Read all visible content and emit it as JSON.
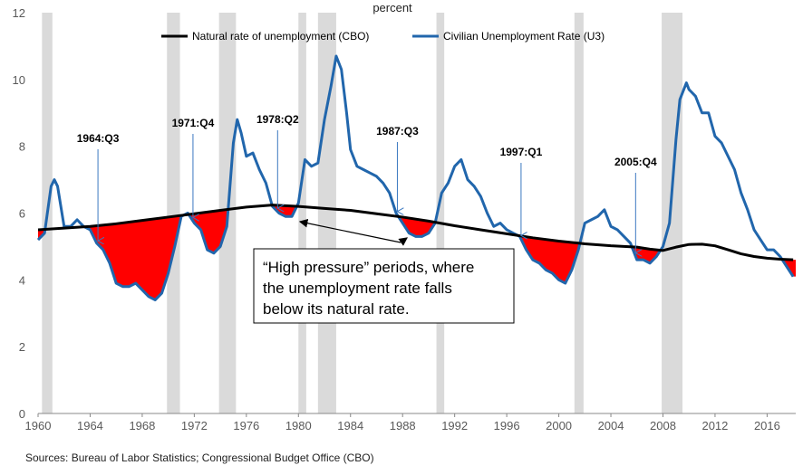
{
  "chart_data": {
    "type": "line",
    "title": "",
    "ylabel": "percent",
    "xlabel": "",
    "xlim": [
      1960,
      2018.2
    ],
    "ylim": [
      0,
      12
    ],
    "x_ticks": [
      1960,
      1964,
      1968,
      1972,
      1976,
      1980,
      1984,
      1988,
      1992,
      1996,
      2000,
      2004,
      2008,
      2012,
      2016
    ],
    "y_ticks": [
      0,
      2,
      4,
      6,
      8,
      10,
      12
    ],
    "grid": false,
    "legend_position": "top",
    "recessions": [
      [
        1960.3,
        1961.1
      ],
      [
        1969.9,
        1970.9
      ],
      [
        1973.9,
        1975.2
      ],
      [
        1980.0,
        1980.6
      ],
      [
        1981.5,
        1982.9
      ],
      [
        1990.6,
        1991.2
      ],
      [
        2001.2,
        2001.9
      ],
      [
        2007.9,
        2009.5
      ]
    ],
    "series": [
      {
        "name": "Natural rate of unemployment (CBO)",
        "color": "#000000",
        "x": [
          1960,
          1962,
          1964,
          1966,
          1968,
          1970,
          1972,
          1974,
          1976,
          1978,
          1980,
          1982,
          1984,
          1986,
          1988,
          1990,
          1992,
          1994,
          1996,
          1998,
          2000,
          2002,
          2004,
          2006,
          2007,
          2008,
          2009,
          2010,
          2011,
          2012,
          2013,
          2014,
          2015,
          2016,
          2017,
          2018
        ],
        "values": [
          5.5,
          5.55,
          5.6,
          5.68,
          5.78,
          5.88,
          5.98,
          6.08,
          6.18,
          6.24,
          6.2,
          6.14,
          6.08,
          5.98,
          5.88,
          5.76,
          5.62,
          5.5,
          5.38,
          5.26,
          5.16,
          5.08,
          5.02,
          4.98,
          4.92,
          4.88,
          4.98,
          5.06,
          5.07,
          5.02,
          4.9,
          4.78,
          4.7,
          4.65,
          4.62,
          4.6
        ]
      },
      {
        "name": "Civilian Unemployment Rate (U3)",
        "color": "#2166AC",
        "x": [
          1960,
          1960.5,
          1961,
          1961.25,
          1961.5,
          1962,
          1962.5,
          1963,
          1963.5,
          1964,
          1964.5,
          1965,
          1965.5,
          1966,
          1966.5,
          1967,
          1967.5,
          1968,
          1968.5,
          1969,
          1969.5,
          1970,
          1970.5,
          1971,
          1971.5,
          1972,
          1972.5,
          1973,
          1973.5,
          1974,
          1974.5,
          1975,
          1975.3,
          1975.6,
          1976,
          1976.5,
          1977,
          1977.5,
          1978,
          1978.5,
          1979,
          1979.5,
          1980,
          1980.5,
          1981,
          1981.5,
          1982,
          1982.5,
          1982.9,
          1983.3,
          1983.7,
          1984,
          1984.5,
          1985,
          1985.5,
          1986,
          1986.5,
          1987,
          1987.5,
          1988,
          1988.5,
          1989,
          1989.5,
          1990,
          1990.5,
          1991,
          1991.5,
          1992,
          1992.5,
          1993,
          1993.5,
          1994,
          1994.5,
          1995,
          1995.5,
          1996,
          1996.5,
          1997,
          1997.5,
          1998,
          1998.5,
          1999,
          1999.5,
          2000,
          2000.5,
          2001,
          2001.5,
          2002,
          2002.5,
          2003,
          2003.5,
          2004,
          2004.5,
          2005,
          2005.5,
          2006,
          2006.5,
          2007,
          2007.5,
          2008,
          2008.5,
          2009,
          2009.3,
          2009.8,
          2010,
          2010.5,
          2011,
          2011.5,
          2012,
          2012.5,
          2013,
          2013.5,
          2014,
          2014.5,
          2015,
          2015.5,
          2016,
          2016.5,
          2017,
          2017.5,
          2018
        ],
        "values": [
          5.2,
          5.4,
          6.8,
          7.0,
          6.8,
          5.6,
          5.6,
          5.8,
          5.6,
          5.5,
          5.1,
          4.9,
          4.5,
          3.9,
          3.8,
          3.8,
          3.9,
          3.7,
          3.5,
          3.4,
          3.6,
          4.2,
          5.0,
          5.9,
          6.0,
          5.7,
          5.5,
          4.9,
          4.8,
          5.0,
          5.6,
          8.1,
          8.8,
          8.4,
          7.7,
          7.8,
          7.3,
          6.9,
          6.2,
          6.0,
          5.9,
          5.9,
          6.3,
          7.6,
          7.4,
          7.5,
          8.8,
          9.8,
          10.7,
          10.3,
          9.0,
          7.9,
          7.4,
          7.3,
          7.2,
          7.1,
          6.9,
          6.6,
          6.0,
          5.7,
          5.4,
          5.3,
          5.3,
          5.4,
          5.7,
          6.6,
          6.9,
          7.4,
          7.6,
          7.0,
          6.8,
          6.5,
          6.0,
          5.6,
          5.7,
          5.5,
          5.4,
          5.3,
          4.9,
          4.6,
          4.5,
          4.3,
          4.2,
          4.0,
          3.9,
          4.3,
          4.9,
          5.7,
          5.8,
          5.9,
          6.1,
          5.6,
          5.5,
          5.3,
          5.1,
          4.6,
          4.6,
          4.5,
          4.7,
          5.0,
          5.7,
          8.2,
          9.4,
          9.9,
          9.7,
          9.5,
          9.0,
          9.0,
          8.3,
          8.1,
          7.7,
          7.3,
          6.6,
          6.1,
          5.5,
          5.2,
          4.9,
          4.9,
          4.7,
          4.4,
          4.1
        ]
      }
    ],
    "annotations": [
      {
        "label": "1964:Q3",
        "x": 1964.6
      },
      {
        "label": "1971:Q4",
        "x": 1971.9
      },
      {
        "label": "1978:Q2",
        "x": 1978.4
      },
      {
        "label": "1987:Q3",
        "x": 1987.6
      },
      {
        "label": "1997:Q1",
        "x": 1997.1
      },
      {
        "label": "2005:Q4",
        "x": 2005.9
      }
    ],
    "callout": {
      "lines": [
        "“High pressure” periods, where",
        "the unemployment rate falls",
        "below its natural rate."
      ]
    },
    "source": "Sources: Bureau of Labor Statistics; Congressional Budget Office (CBO)",
    "colors": {
      "recession": "#DADADA",
      "fill_below": "#FF0000",
      "u3_line": "#2166AC",
      "nairu_line": "#000000",
      "axis_text": "#595959"
    }
  }
}
